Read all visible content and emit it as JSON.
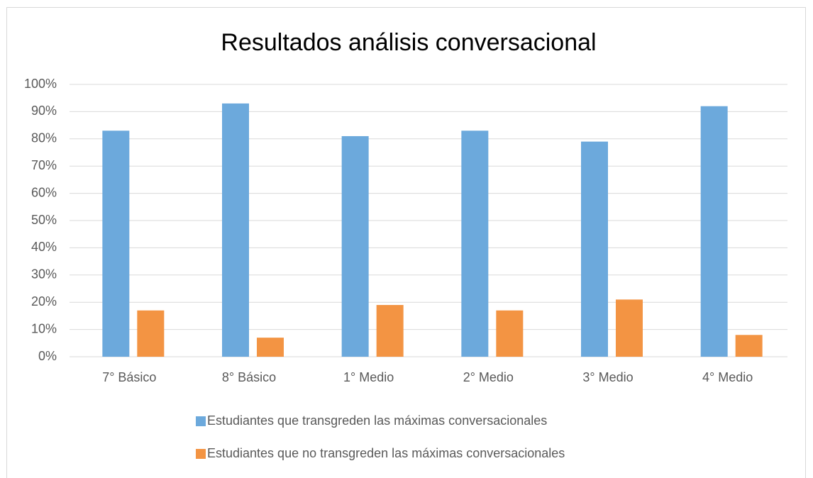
{
  "chart_data": {
    "type": "bar",
    "title": "Resultados análisis conversacional",
    "categories": [
      "7° Básico",
      "8° Básico",
      "1° Medio",
      "2° Medio",
      "3° Medio",
      "4° Medio"
    ],
    "series": [
      {
        "name": "Estudiantes que transgreden las máximas conversacionales",
        "color": "#6ca9dc",
        "values": [
          83,
          93,
          81,
          83,
          79,
          92
        ]
      },
      {
        "name": "Estudiantes que no transgreden las máximas conversacionales",
        "color": "#f39443",
        "values": [
          17,
          7,
          19,
          17,
          21,
          8
        ]
      }
    ],
    "ylim": [
      0,
      100
    ],
    "yticks": [
      {
        "value": 0,
        "label": "0%"
      },
      {
        "value": 10,
        "label": "10%"
      },
      {
        "value": 20,
        "label": "20%"
      },
      {
        "value": 30,
        "label": "30%"
      },
      {
        "value": 40,
        "label": "40%"
      },
      {
        "value": 50,
        "label": "50%"
      },
      {
        "value": 60,
        "label": "60%"
      },
      {
        "value": 70,
        "label": "70%"
      },
      {
        "value": 80,
        "label": "80%"
      },
      {
        "value": 90,
        "label": "90%"
      },
      {
        "value": 100,
        "label": "100%"
      }
    ],
    "grid": true,
    "legend": "bottom"
  }
}
